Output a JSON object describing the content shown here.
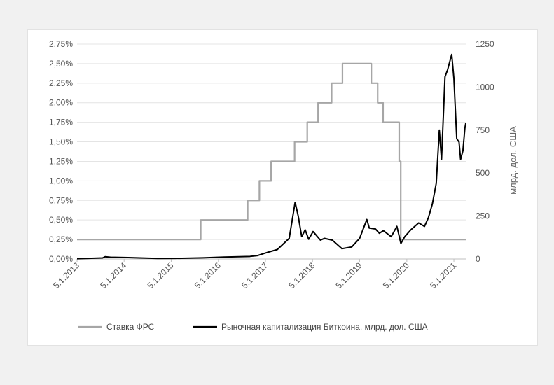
{
  "chart_data": {
    "type": "line",
    "y_left_ticks": [
      "0,00%",
      "0,25%",
      "0,50%",
      "0,75%",
      "1,00%",
      "1,25%",
      "1,50%",
      "1,75%",
      "2,00%",
      "2,25%",
      "2,50%",
      "2,75%"
    ],
    "y_right_ticks": [
      "0",
      "250",
      "500",
      "750",
      "1000",
      "1250"
    ],
    "x_ticks": [
      "5.1.2013",
      "5.1.2014",
      "5.1.2015",
      "5.1.2016",
      "5.1.2017",
      "5.1.2018",
      "5.1.2019",
      "5.1.2020",
      "5.1.2021"
    ],
    "xlim": [
      "2013-05-01",
      "2021-08-01"
    ],
    "ylim_left_percent": [
      0,
      2.75
    ],
    "ylim_right": [
      0,
      1250
    ],
    "ylabel_right": "млрд. дол. США",
    "grid": "horizontal",
    "legend_position": "bottom",
    "series": [
      {
        "name": "Ставка ФРС",
        "axis": "left",
        "color": "#a6a6a6",
        "unit": "%",
        "x": [
          "2013-05-01",
          "2015-12-16",
          "2016-12-14",
          "2017-03-15",
          "2017-06-14",
          "2017-12-13",
          "2018-03-21",
          "2018-06-13",
          "2018-09-26",
          "2018-12-19",
          "2019-07-31",
          "2019-09-18",
          "2019-10-30",
          "2020-03-03",
          "2020-03-15",
          "2021-08-01"
        ],
        "values": [
          0.25,
          0.5,
          0.75,
          1.0,
          1.25,
          1.5,
          1.75,
          2.0,
          2.25,
          2.5,
          2.25,
          2.0,
          1.75,
          1.25,
          0.25,
          0.25
        ]
      },
      {
        "name": "Рыночная капитализация Биткоина, млрд. дол. США",
        "axis": "right",
        "color": "#000000",
        "unit": "млрд. дол. США",
        "x": [
          "2013-05-01",
          "2013-11-15",
          "2013-12-05",
          "2014-01-15",
          "2014-06-01",
          "2015-01-15",
          "2015-06-01",
          "2016-01-01",
          "2016-06-15",
          "2017-01-01",
          "2017-03-01",
          "2017-05-01",
          "2017-08-01",
          "2017-11-01",
          "2017-12-17",
          "2018-01-10",
          "2018-02-06",
          "2018-03-05",
          "2018-04-01",
          "2018-05-05",
          "2018-07-01",
          "2018-08-01",
          "2018-10-01",
          "2018-12-15",
          "2019-03-01",
          "2019-05-01",
          "2019-06-26",
          "2019-07-15",
          "2019-09-01",
          "2019-10-01",
          "2019-11-01",
          "2020-01-01",
          "2020-02-14",
          "2020-03-16",
          "2020-04-15",
          "2020-06-01",
          "2020-08-01",
          "2020-09-15",
          "2020-10-15",
          "2020-11-15",
          "2020-12-15",
          "2021-01-08",
          "2021-01-25",
          "2021-02-21",
          "2021-03-13",
          "2021-04-14",
          "2021-05-01",
          "2021-05-23",
          "2021-06-10",
          "2021-06-22",
          "2021-07-10",
          "2021-07-25",
          "2021-08-01"
        ],
        "values": [
          1.5,
          6,
          13,
          10,
          8,
          3,
          3.5,
          6.5,
          11,
          15,
          20,
          35,
          55,
          120,
          330,
          250,
          130,
          170,
          115,
          160,
          110,
          120,
          110,
          60,
          70,
          120,
          230,
          180,
          175,
          150,
          165,
          130,
          190,
          90,
          130,
          170,
          210,
          190,
          240,
          320,
          440,
          750,
          580,
          1060,
          1100,
          1190,
          1050,
          700,
          680,
          580,
          630,
          760,
          790
        ]
      }
    ]
  }
}
